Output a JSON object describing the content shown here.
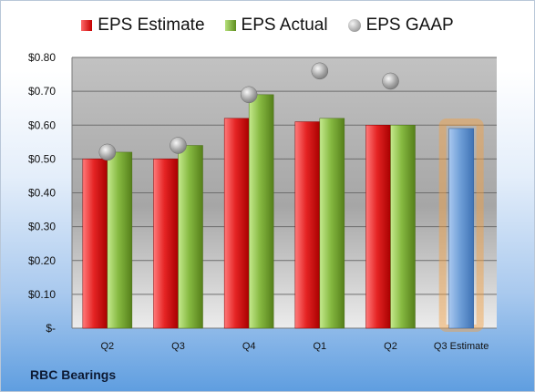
{
  "chart_data": {
    "type": "bar",
    "categories": [
      "Q2",
      "Q3",
      "Q4",
      "Q1",
      "Q2",
      "Q3 Estimate"
    ],
    "series": [
      {
        "name": "EPS Estimate",
        "values": [
          0.5,
          0.5,
          0.62,
          0.61,
          0.6,
          null
        ]
      },
      {
        "name": "EPS Actual",
        "values": [
          0.52,
          0.54,
          0.69,
          0.62,
          0.6,
          null
        ]
      },
      {
        "name": "EPS GAAP",
        "values": [
          0.52,
          0.54,
          0.69,
          0.76,
          0.73,
          null
        ]
      },
      {
        "name": "Q3 Estimate",
        "values": [
          null,
          null,
          null,
          null,
          null,
          0.59
        ]
      }
    ],
    "ylim": [
      0,
      0.8
    ],
    "yticks": [
      0,
      0.1,
      0.2,
      0.3,
      0.4,
      0.5,
      0.6,
      0.7,
      0.8
    ],
    "ytick_labels": [
      "$-",
      "$0.10",
      "$0.20",
      "$0.30",
      "$0.40",
      "$0.50",
      "$0.60",
      "$0.70",
      "$0.80"
    ],
    "grid": true,
    "legend_position": "top-center",
    "colors": {
      "estimate": "#d21f1f",
      "actual": "#7fb23a",
      "gaap": "#a6a6a6",
      "forecast": "#6b9fd8",
      "forecast_glow": "#f5a040"
    }
  },
  "legend": {
    "estimate": "EPS Estimate",
    "actual": "EPS Actual",
    "gaap": "EPS GAAP"
  },
  "company": "RBC Bearings"
}
